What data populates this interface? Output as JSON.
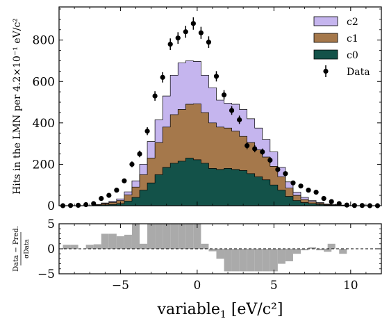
{
  "chart_data": [
    {
      "type": "stacked-histogram",
      "xlim": [
        -9,
        12
      ],
      "ylim": [
        0,
        960
      ],
      "bin_edges_start": -8.75,
      "bin_width": 0.5,
      "xticks": [
        -5,
        0,
        5,
        10
      ],
      "xtick_labels": [
        "−5",
        "0",
        "5",
        "10"
      ],
      "yticks": [
        0,
        200,
        400,
        600,
        800
      ],
      "ytick_labels": [
        "0",
        "200",
        "400",
        "600",
        "800"
      ],
      "ylabel": "Hits in the LMN per 4.2×10⁻¹ eV/c²",
      "legend_position": "upper right",
      "series": [
        {
          "name": "c0",
          "color": "#135249",
          "values": [
            0,
            0,
            0,
            0,
            2,
            4,
            6,
            10,
            22,
            40,
            75,
            110,
            150,
            185,
            205,
            215,
            230,
            222,
            205,
            180,
            175,
            180,
            175,
            170,
            155,
            140,
            125,
            100,
            75,
            45,
            25,
            15,
            10,
            6,
            3,
            2,
            1,
            0,
            0,
            0,
            0,
            0
          ]
        },
        {
          "name": "c1",
          "color": "#a5784b",
          "values": [
            0,
            0,
            0,
            0,
            3,
            6,
            10,
            15,
            30,
            50,
            75,
            120,
            155,
            195,
            235,
            250,
            260,
            270,
            245,
            220,
            205,
            195,
            185,
            165,
            150,
            130,
            110,
            90,
            65,
            40,
            25,
            15,
            10,
            6,
            3,
            2,
            1,
            0,
            0,
            0,
            0,
            0
          ]
        },
        {
          "name": "c2",
          "color": "#c5b5ee",
          "values": [
            0,
            0,
            0,
            0,
            1,
            3,
            5,
            8,
            15,
            30,
            50,
            80,
            110,
            150,
            190,
            225,
            210,
            205,
            180,
            170,
            130,
            120,
            130,
            130,
            115,
            105,
            85,
            70,
            45,
            30,
            15,
            10,
            5,
            3,
            2,
            1,
            1,
            0,
            0,
            0,
            0,
            0
          ]
        }
      ],
      "data": {
        "name": "Data",
        "x": [
          -8.75,
          -8.25,
          -7.75,
          -7.25,
          -6.75,
          -6.25,
          -5.75,
          -5.25,
          -4.75,
          -4.25,
          -3.75,
          -3.25,
          -2.75,
          -2.25,
          -1.75,
          -1.25,
          -0.75,
          -0.25,
          0.25,
          0.75,
          1.25,
          1.75,
          2.25,
          2.75,
          3.25,
          3.75,
          4.25,
          4.75,
          5.25,
          5.75,
          6.25,
          6.75,
          7.25,
          7.75,
          8.25,
          8.75,
          9.25,
          9.75,
          10.25,
          10.75,
          11.25,
          11.75
        ],
        "y": [
          0,
          1,
          2,
          5,
          10,
          35,
          50,
          75,
          120,
          200,
          250,
          360,
          530,
          620,
          780,
          810,
          840,
          880,
          835,
          790,
          625,
          535,
          460,
          415,
          290,
          275,
          260,
          220,
          175,
          155,
          110,
          95,
          75,
          65,
          35,
          20,
          10,
          3,
          1,
          1,
          0,
          0
        ],
        "yerr": [
          0,
          1,
          1,
          2,
          3,
          6,
          7,
          9,
          11,
          14,
          16,
          19,
          23,
          25,
          28,
          28,
          29,
          30,
          29,
          28,
          25,
          23,
          21,
          20,
          17,
          17,
          16,
          15,
          13,
          12,
          10,
          10,
          9,
          8,
          6,
          4,
          3,
          2,
          1,
          1,
          0,
          0
        ]
      }
    },
    {
      "type": "bar",
      "ylabel_num": "Data − Pred.",
      "ylabel_den": "σData",
      "xlabel_main": "variable",
      "xlabel_sub": "1",
      "xlabel_unit": " [eV/c²]",
      "xlim": [
        -9,
        12
      ],
      "ylim": [
        -5,
        5
      ],
      "yticks": [
        -5,
        0,
        5
      ],
      "ytick_labels": [
        "−5",
        "0",
        "5"
      ],
      "xticks": [
        -5,
        0,
        5,
        10
      ],
      "xtick_labels": [
        "−5",
        "0",
        "5",
        "10"
      ],
      "bin_edges_start": -8.75,
      "bin_width": 0.5,
      "values": [
        0.8,
        0.8,
        0,
        0.8,
        0.9,
        3,
        3,
        2.5,
        2.8,
        5,
        1,
        5,
        5,
        5,
        5,
        5,
        5,
        5,
        1,
        -0.5,
        -2,
        -4.5,
        -4.5,
        -4.5,
        -4.5,
        -4.5,
        -4.5,
        -4.5,
        -3,
        -2.5,
        -1,
        -0.3,
        0.3,
        -0.3,
        -0.6,
        0,
        -1,
        0,
        0,
        0,
        0,
        0
      ],
      "extra_bar": {
        "x": 8.75,
        "value": 1
      },
      "color": "#aaaaaa"
    }
  ],
  "legend": [
    {
      "label": "c2",
      "color": "#c5b5ee",
      "kind": "patch"
    },
    {
      "label": "c1",
      "color": "#a5784b",
      "kind": "patch"
    },
    {
      "label": "c0",
      "color": "#135249",
      "kind": "patch"
    },
    {
      "label": "Data",
      "color": "#000000",
      "kind": "errorbar"
    }
  ]
}
